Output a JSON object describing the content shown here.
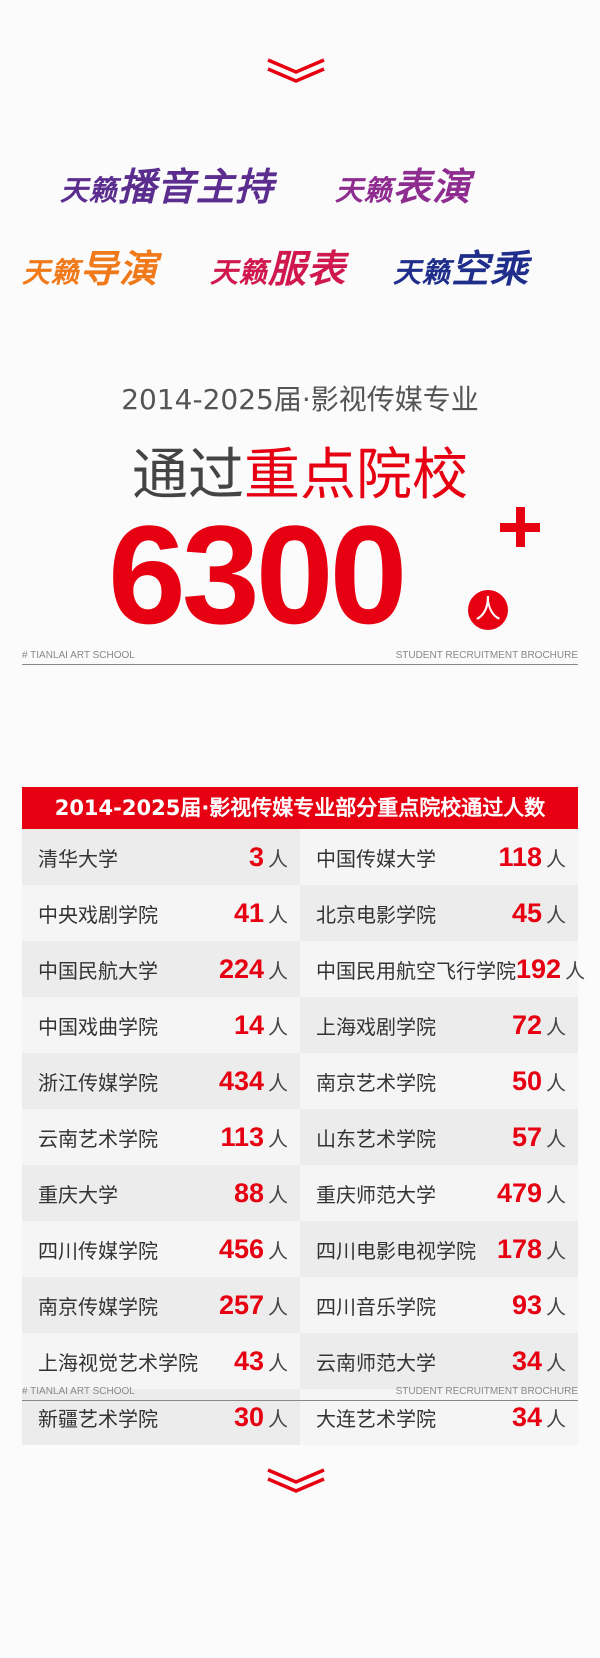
{
  "logos": [
    {
      "prefix": "天籁",
      "main": "播音主持",
      "color": "#5b2d8e"
    },
    {
      "prefix": "天籁",
      "main": "表演",
      "color": "#8e2d8f"
    },
    {
      "prefix": "天籁",
      "main": "导演",
      "color": "#f07a1a"
    },
    {
      "prefix": "天籁",
      "main": "服表",
      "color": "#d0184f"
    },
    {
      "prefix": "天籁",
      "main": "空乘",
      "color": "#1f2e8a"
    }
  ],
  "headline": {
    "sub": "2014-2025届·影视传媒专业",
    "main_gray": "通过",
    "main_red": "重点院校",
    "number": "6300",
    "unit": "人"
  },
  "footer": {
    "left": "# TIANLAI ART SCHOOL",
    "right": "STUDENT RECRUITMENT BROCHURE"
  },
  "table": {
    "title": "2014-2025届·影视传媒专业部分重点院校通过人数",
    "unit": "人",
    "rows": [
      [
        {
          "name": "清华大学",
          "count": "3"
        },
        {
          "name": "中国传媒大学",
          "count": "118"
        }
      ],
      [
        {
          "name": "中央戏剧学院",
          "count": "41"
        },
        {
          "name": "北京电影学院",
          "count": "45"
        }
      ],
      [
        {
          "name": "中国民航大学",
          "count": "224"
        },
        {
          "name": "中国民用航空飞行学院",
          "count": "192"
        }
      ],
      [
        {
          "name": "中国戏曲学院",
          "count": "14"
        },
        {
          "name": "上海戏剧学院",
          "count": "72"
        }
      ],
      [
        {
          "name": "浙江传媒学院",
          "count": "434"
        },
        {
          "name": "南京艺术学院",
          "count": "50"
        }
      ],
      [
        {
          "name": "云南艺术学院",
          "count": "113"
        },
        {
          "name": "山东艺术学院",
          "count": "57"
        }
      ],
      [
        {
          "name": "重庆大学",
          "count": "88"
        },
        {
          "name": "重庆师范大学",
          "count": "479"
        }
      ],
      [
        {
          "name": "四川传媒学院",
          "count": "456"
        },
        {
          "name": "四川电影电视学院",
          "count": "178"
        }
      ],
      [
        {
          "name": "南京传媒学院",
          "count": "257"
        },
        {
          "name": "四川音乐学院",
          "count": "93"
        }
      ],
      [
        {
          "name": "上海视觉艺术学院",
          "count": "43"
        },
        {
          "name": "云南师范大学",
          "count": "34"
        }
      ],
      [
        {
          "name": "新疆艺术学院",
          "count": "30"
        },
        {
          "name": "大连艺术学院",
          "count": "34"
        }
      ]
    ]
  },
  "colors": {
    "accent": "#e60012"
  }
}
